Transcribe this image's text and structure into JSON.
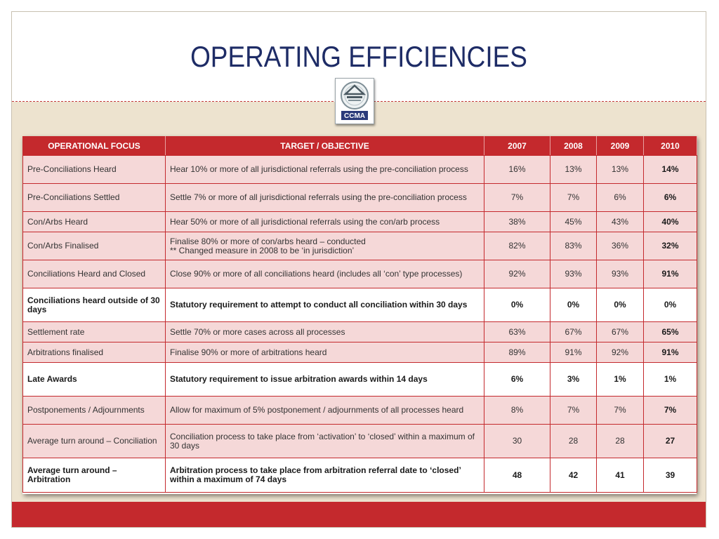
{
  "title": "OPERATING EFFICIENCIES",
  "logo": {
    "text": "CCMA",
    "icon": "ccma-logo-icon"
  },
  "colors": {
    "accent": "#c4292d",
    "title": "#1e2c66",
    "alt_row": "#f5d8d8",
    "background": "#ede3cf"
  },
  "table": {
    "headers": [
      "OPERATIONAL FOCUS",
      "TARGET / OBJECTIVE",
      "2007",
      "2008",
      "2009",
      "2010"
    ],
    "rows": [
      {
        "focus": "Pre-Conciliations Heard",
        "target": "Hear 10% or more of all jurisdictional referrals using the pre-conciliation process",
        "y2007": "16%",
        "y2008": "13%",
        "y2009": "13%",
        "y2010": "14%",
        "style": "alt"
      },
      {
        "focus": "Pre-Conciliations Settled",
        "target": "Settle 7% or more of all jurisdictional referrals using the pre-conciliation process",
        "y2007": "7%",
        "y2008": "7%",
        "y2009": "6%",
        "y2010": "6%",
        "style": "alt"
      },
      {
        "focus": "Con/Arbs Heard",
        "target": "Hear 50% or more of all jurisdictional referrals using the con/arb process",
        "y2007": "38%",
        "y2008": "45%",
        "y2009": "43%",
        "y2010": "40%",
        "style": "alt"
      },
      {
        "focus": "Con/Arbs Finalised",
        "target": "Finalise 80% or more of con/arbs heard – conducted",
        "target2": "** Changed measure in 2008 to be ‘in jurisdiction’",
        "y2007": "82%",
        "y2008": "83%",
        "y2009": "36%",
        "y2010": "32%",
        "style": "alt"
      },
      {
        "focus": "Conciliations Heard and Closed",
        "target": "Close 90% or more of all conciliations heard (includes all ‘con’ type processes)",
        "y2007": "92%",
        "y2008": "93%",
        "y2009": "93%",
        "y2010": "91%",
        "style": "alt"
      },
      {
        "focus": "Conciliations heard outside of 30 days",
        "target": "Statutory requirement to attempt to conduct all conciliation within 30 days",
        "y2007": "0%",
        "y2008": "0%",
        "y2009": "0%",
        "y2010": "0%",
        "style": "white"
      },
      {
        "focus": "Settlement rate",
        "target": "Settle 70% or more cases across all processes",
        "y2007": "63%",
        "y2008": "67%",
        "y2009": "67%",
        "y2010": "65%",
        "style": "alt"
      },
      {
        "focus": "Arbitrations finalised",
        "target": "Finalise 90% or more of arbitrations heard",
        "y2007": "89%",
        "y2008": "91%",
        "y2009": "92%",
        "y2010": "91%",
        "style": "alt"
      },
      {
        "focus": "Late Awards",
        "target": "Statutory requirement to issue arbitration awards within 14 days",
        "y2007": "6%",
        "y2008": "3%",
        "y2009": "1%",
        "y2010": "1%",
        "style": "white"
      },
      {
        "focus": "Postponements / Adjournments",
        "target": "Allow for maximum of 5% postponement / adjournments of all processes heard",
        "y2007": "8%",
        "y2008": "7%",
        "y2009": "7%",
        "y2010": "7%",
        "style": "alt"
      },
      {
        "focus": "Average turn around – Conciliation",
        "target": "Conciliation process to take place from ‘activation’ to ‘closed’ within a maximum of 30 days",
        "y2007": "30",
        "y2008": "28",
        "y2009": "28",
        "y2010": "27",
        "style": "alt"
      },
      {
        "focus": "Average turn around – Arbitration",
        "target": "Arbitration process to take place from arbitration referral date to ‘closed’ within a maximum of 74 days",
        "y2007": "48",
        "y2008": "42",
        "y2009": "41",
        "y2010": "39",
        "style": "white"
      }
    ]
  }
}
